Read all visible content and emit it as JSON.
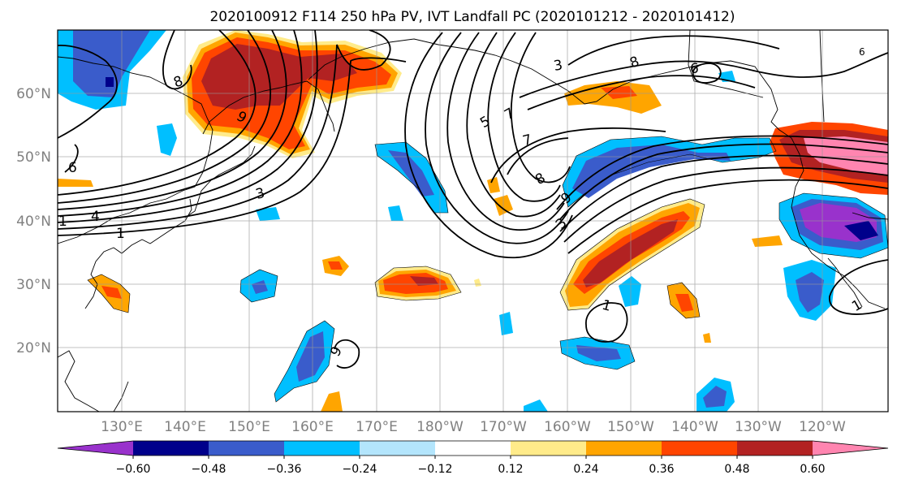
{
  "title": "2020100912 F114 250 hPa PV, IVT Landfall PC (2020101212 - 2020101412)",
  "map": {
    "lat_labels": [
      "60°N",
      "50°N",
      "40°N",
      "30°N",
      "20°N"
    ],
    "lon_labels": [
      "130°E",
      "140°E",
      "150°E",
      "160°E",
      "170°E",
      "180°W",
      "170°W",
      "160°W",
      "150°W",
      "140°W",
      "130°W",
      "120°W"
    ],
    "contour_labels": [
      "8",
      "9",
      "6",
      "3",
      "4",
      "1",
      "1",
      "5",
      "7",
      "7",
      "8",
      "9",
      "3",
      "8",
      "6",
      "3",
      "1",
      "1",
      "6",
      "9"
    ],
    "grid": true
  },
  "colorbar": {
    "colors": [
      "#9932CC",
      "#00008B",
      "#3A5CCB",
      "#00BFFF",
      "#B3E5FC",
      "#FFFFFF",
      "#FFEB8A",
      "#FFA500",
      "#FF4500",
      "#B22222",
      "#FF85B0"
    ],
    "tick_labels": [
      "−0.60",
      "−0.48",
      "−0.36",
      "−0.24",
      "−0.12",
      "0.12",
      "0.24",
      "0.36",
      "0.48",
      "0.60"
    ]
  },
  "colors": {
    "land_line": "#000000",
    "grid_line": "#999999",
    "contour": "#000000"
  }
}
